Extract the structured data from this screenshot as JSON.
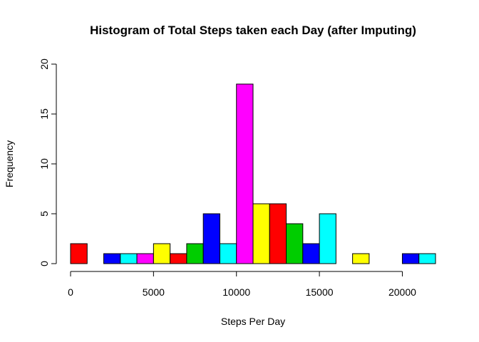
{
  "chart_data": {
    "type": "bar",
    "title": "Histogram of Total Steps taken each Day (after Imputing)",
    "xlabel": "Steps Per Day",
    "ylabel": "Frequency",
    "bin_width": 1000,
    "xlim": [
      0,
      22000
    ],
    "ylim": [
      0,
      20
    ],
    "x_ticks": [
      0,
      5000,
      10000,
      15000,
      20000
    ],
    "y_ticks": [
      0,
      5,
      10,
      15,
      20
    ],
    "bins": [
      {
        "start": 0,
        "end": 1000,
        "count": 2
      },
      {
        "start": 1000,
        "end": 2000,
        "count": 0
      },
      {
        "start": 2000,
        "end": 3000,
        "count": 1
      },
      {
        "start": 3000,
        "end": 4000,
        "count": 1
      },
      {
        "start": 4000,
        "end": 5000,
        "count": 1
      },
      {
        "start": 5000,
        "end": 6000,
        "count": 2
      },
      {
        "start": 6000,
        "end": 7000,
        "count": 1
      },
      {
        "start": 7000,
        "end": 8000,
        "count": 2
      },
      {
        "start": 8000,
        "end": 9000,
        "count": 5
      },
      {
        "start": 9000,
        "end": 10000,
        "count": 2
      },
      {
        "start": 10000,
        "end": 11000,
        "count": 18
      },
      {
        "start": 11000,
        "end": 12000,
        "count": 6
      },
      {
        "start": 12000,
        "end": 13000,
        "count": 6
      },
      {
        "start": 13000,
        "end": 14000,
        "count": 4
      },
      {
        "start": 14000,
        "end": 15000,
        "count": 2
      },
      {
        "start": 15000,
        "end": 16000,
        "count": 5
      },
      {
        "start": 16000,
        "end": 17000,
        "count": 0
      },
      {
        "start": 17000,
        "end": 18000,
        "count": 1
      },
      {
        "start": 18000,
        "end": 19000,
        "count": 0
      },
      {
        "start": 19000,
        "end": 20000,
        "count": 0
      },
      {
        "start": 20000,
        "end": 21000,
        "count": 1
      },
      {
        "start": 21000,
        "end": 22000,
        "count": 1
      }
    ],
    "bar_colors": [
      "#ff0000",
      "#00cd00",
      "#0000ff",
      "#00ffff",
      "#ff00ff",
      "#ffff00"
    ],
    "grid": false,
    "legend": "none"
  }
}
